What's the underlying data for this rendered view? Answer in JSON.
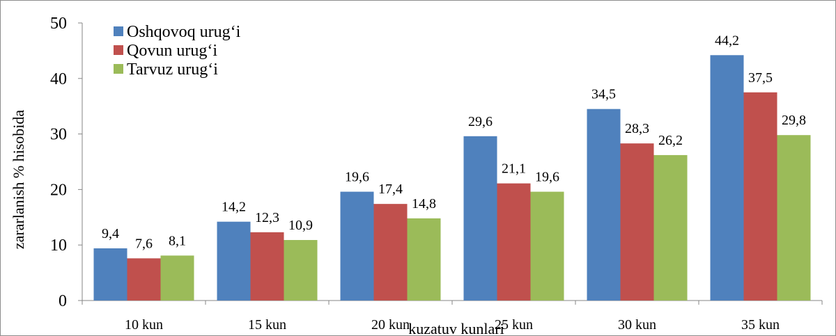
{
  "chart_data": {
    "type": "bar",
    "title": "",
    "xlabel": "kuzatuv kunlari",
    "ylabel": "zararlanish %  hisobida",
    "ylim": [
      0,
      50
    ],
    "yticks": [
      "0",
      "10",
      "20",
      "30",
      "40",
      "50"
    ],
    "categories": [
      "10 kun",
      "15 kun",
      "20 kun",
      "25 kun",
      "30 kun",
      "35 kun"
    ],
    "series": [
      {
        "name": "Oshqovoq urug‘i",
        "color": "#4f81bd",
        "values": [
          9.4,
          14.2,
          19.6,
          29.6,
          34.5,
          44.2
        ],
        "labels": [
          "9,4",
          "14,2",
          "19,6",
          "29,6",
          "34,5",
          "44,2"
        ]
      },
      {
        "name": "Qovun urug‘i",
        "color": "#c0504d",
        "values": [
          7.6,
          12.3,
          17.4,
          21.1,
          28.3,
          37.5
        ],
        "labels": [
          "7,6",
          "12,3",
          "17,4",
          "21,1",
          "28,3",
          "37,5"
        ]
      },
      {
        "name": "Tarvuz urug‘i",
        "color": "#9bbb59",
        "values": [
          8.1,
          10.9,
          14.8,
          19.6,
          26.2,
          29.8
        ],
        "labels": [
          "8,1",
          "10,9",
          "14,8",
          "19,6",
          "26,2",
          "29,8"
        ]
      }
    ],
    "legend": "top-left",
    "grid": false
  }
}
